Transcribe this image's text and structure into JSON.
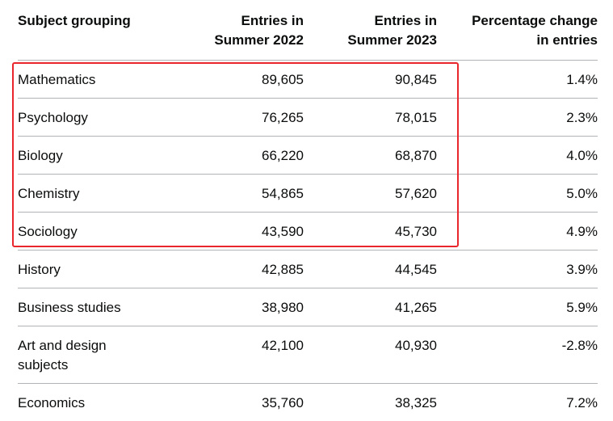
{
  "table": {
    "headers": {
      "subject": [
        "Subject grouping"
      ],
      "entries_2022": [
        "Entries in",
        "Summer 2022"
      ],
      "entries_2023": [
        "Entries in",
        "Summer 2023"
      ],
      "pct_change": [
        "Percentage change",
        "in entries"
      ]
    },
    "rows": [
      {
        "subject": "Mathematics",
        "entries_2022": "89,605",
        "entries_2023": "90,845",
        "pct_change": "1.4%"
      },
      {
        "subject": "Psychology",
        "entries_2022": "76,265",
        "entries_2023": "78,015",
        "pct_change": "2.3%"
      },
      {
        "subject": "Biology",
        "entries_2022": "66,220",
        "entries_2023": "68,870",
        "pct_change": "4.0%"
      },
      {
        "subject": "Chemistry",
        "entries_2022": "54,865",
        "entries_2023": "57,620",
        "pct_change": "5.0%"
      },
      {
        "subject": "Sociology",
        "entries_2022": "43,590",
        "entries_2023": "45,730",
        "pct_change": "4.9%"
      },
      {
        "subject": "History",
        "entries_2022": "42,885",
        "entries_2023": "44,545",
        "pct_change": "3.9%"
      },
      {
        "subject": "Business studies",
        "entries_2022": "38,980",
        "entries_2023": "41,265",
        "pct_change": "5.9%"
      },
      {
        "subject": "Art and design subjects",
        "entries_2022": "42,100",
        "entries_2023": "40,930",
        "pct_change": "-2.8%"
      },
      {
        "subject": "Economics",
        "entries_2022": "35,760",
        "entries_2023": "38,325",
        "pct_change": "7.2%"
      }
    ]
  },
  "highlight": {
    "color": "#e8262c",
    "covers_rows": [
      "Mathematics",
      "Psychology",
      "Biology",
      "Chemistry",
      "Sociology"
    ]
  }
}
